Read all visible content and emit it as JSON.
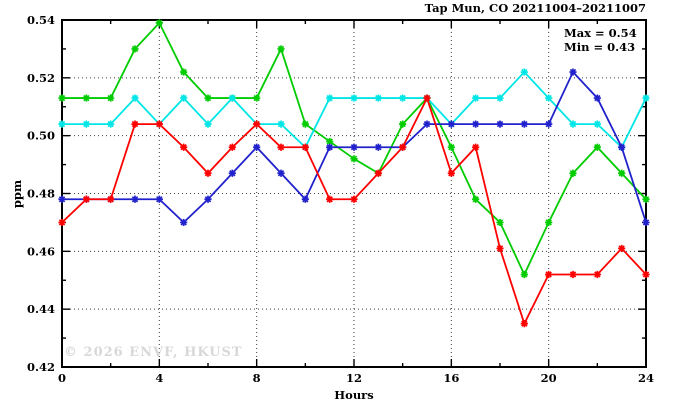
{
  "header": {
    "title": "Tap Mun, CO 20211004–20211007"
  },
  "chart_data": {
    "type": "line",
    "title": "Tap Mun, CO 20211004–20211007",
    "xlabel": "Hours",
    "ylabel": "ppm",
    "xlim": [
      0,
      24
    ],
    "ylim": [
      0.42,
      0.54
    ],
    "x_major_ticks": [
      0,
      4,
      8,
      12,
      16,
      20,
      24
    ],
    "x_major_tick_labels": [
      "0",
      "4",
      "8",
      "12",
      "16",
      "20",
      "24"
    ],
    "x_minor_ticks": [
      2,
      6,
      10,
      14,
      18,
      22
    ],
    "y_major_ticks": [
      0.42,
      0.44,
      0.46,
      0.48,
      0.5,
      0.52,
      0.54
    ],
    "y_major_tick_labels": [
      "0.42",
      "0.44",
      "0.46",
      "0.48",
      "0.50",
      "0.52",
      "0.54"
    ],
    "y_minor_ticks": [
      0.43,
      0.45,
      0.47,
      0.49,
      0.51,
      0.53
    ],
    "x_grid_lines": [
      4,
      8,
      12,
      16,
      20
    ],
    "y_grid_lines": [
      0.44,
      0.46,
      0.48,
      0.5,
      0.52
    ],
    "grid": true,
    "legend": "none",
    "marker": "asterisk",
    "annotation": {
      "max": "Max = 0.54",
      "min": "Min = 0.43"
    },
    "watermark": "© 2026 ENVF, HKUST",
    "x": [
      0,
      1,
      2,
      3,
      4,
      5,
      6,
      7,
      8,
      9,
      10,
      11,
      12,
      13,
      14,
      15,
      16,
      17,
      18,
      19,
      20,
      21,
      22,
      23,
      24
    ],
    "series": [
      {
        "name": "green",
        "color": "#00cc00",
        "values": [
          0.513,
          0.513,
          0.513,
          0.53,
          0.539,
          0.522,
          0.513,
          0.513,
          0.513,
          0.53,
          0.504,
          0.498,
          0.492,
          0.487,
          0.504,
          0.513,
          0.496,
          0.478,
          0.47,
          0.452,
          0.47,
          0.487,
          0.496,
          0.487,
          0.478
        ]
      },
      {
        "name": "cyan",
        "color": "#00e6e6",
        "values": [
          0.504,
          0.504,
          0.504,
          0.513,
          0.504,
          0.513,
          0.504,
          0.513,
          0.504,
          0.504,
          0.496,
          0.513,
          0.513,
          0.513,
          0.513,
          0.513,
          0.504,
          0.513,
          0.513,
          0.522,
          0.513,
          0.504,
          0.504,
          0.496,
          0.513
        ]
      },
      {
        "name": "blue",
        "color": "#2222cc",
        "values": [
          0.478,
          0.478,
          0.478,
          0.478,
          0.478,
          0.47,
          0.478,
          0.487,
          0.496,
          0.487,
          0.478,
          0.496,
          0.496,
          0.496,
          0.496,
          0.504,
          0.504,
          0.504,
          0.504,
          0.504,
          0.504,
          0.522,
          0.513,
          0.496,
          0.47
        ]
      },
      {
        "name": "red",
        "color": "#ff0000",
        "values": [
          0.47,
          0.478,
          0.478,
          0.504,
          0.504,
          0.496,
          0.487,
          0.496,
          0.504,
          0.496,
          0.496,
          0.478,
          0.478,
          0.487,
          0.496,
          0.513,
          0.487,
          0.496,
          0.461,
          0.435,
          0.452,
          0.452,
          0.452,
          0.461,
          0.452
        ]
      }
    ]
  },
  "colors": {
    "background": "#ffffff",
    "axis": "#000000",
    "grid": "#3c3c3c",
    "text": "#000000",
    "watermark": "#d8d8d8"
  }
}
